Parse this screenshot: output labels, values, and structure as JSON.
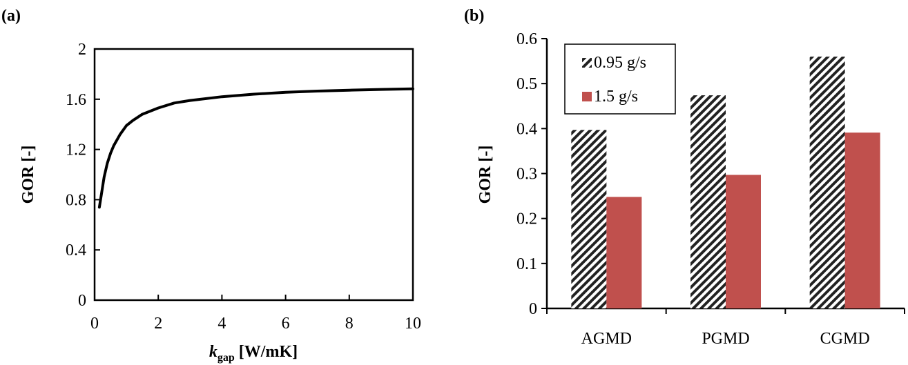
{
  "panels": {
    "a": {
      "label": "(a)"
    },
    "b": {
      "label": "(b)"
    }
  },
  "chart_data": [
    {
      "type": "line",
      "title": "",
      "xlabel_main": "k",
      "xlabel_sub": "gap",
      "xlabel_unit": " [W/mK]",
      "ylabel": "GOR [-]",
      "xlim": [
        0,
        10
      ],
      "ylim": [
        0,
        2
      ],
      "x_ticks": [
        0,
        2,
        4,
        6,
        8,
        10
      ],
      "y_ticks": [
        "0",
        "0.4",
        "0.8",
        "1.2",
        "1.6",
        "2"
      ],
      "series": [
        {
          "x": [
            0.15,
            0.2,
            0.3,
            0.4,
            0.5,
            0.6,
            0.8,
            1.0,
            1.2,
            1.5,
            2.0,
            2.5,
            3.0,
            4.0,
            5.0,
            6.0,
            7.0,
            8.0,
            9.0,
            10.0
          ],
          "y": [
            0.74,
            0.82,
            0.98,
            1.09,
            1.17,
            1.23,
            1.32,
            1.39,
            1.43,
            1.48,
            1.53,
            1.57,
            1.59,
            1.62,
            1.64,
            1.655,
            1.665,
            1.672,
            1.678,
            1.683
          ],
          "color": "#000000"
        }
      ],
      "grid": false
    },
    {
      "type": "bar",
      "title": "",
      "xlabel": "",
      "ylabel": "GOR [-]",
      "categories": [
        "AGMD",
        "PGMD",
        "CGMD"
      ],
      "ylim": [
        0,
        0.6
      ],
      "y_ticks": [
        "0",
        "0.1",
        "0.2",
        "0.3",
        "0.4",
        "0.5",
        "0.6"
      ],
      "series": [
        {
          "name": "0.95 g/s",
          "values": [
            0.397,
            0.474,
            0.56
          ],
          "pattern": "hatched"
        },
        {
          "name": "1.5 g/s",
          "values": [
            0.248,
            0.297,
            0.391
          ],
          "color": "#c0504d"
        }
      ],
      "legend_position": "top-left",
      "grid": false
    }
  ]
}
